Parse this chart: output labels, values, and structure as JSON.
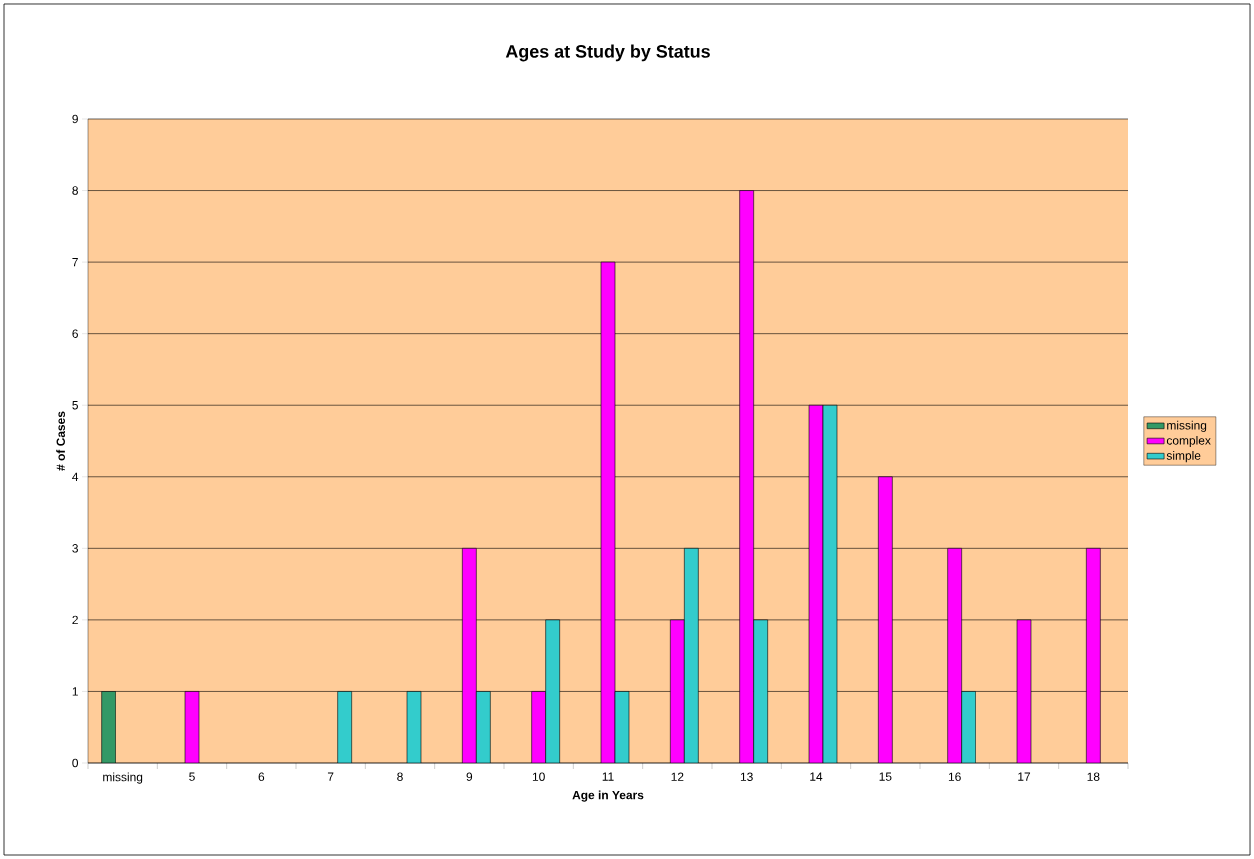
{
  "chart_data": {
    "type": "bar",
    "title": "Ages at Study by Status",
    "xlabel": "Age in Years",
    "ylabel": "# of Cases",
    "categories": [
      "missing",
      "5",
      "6",
      "7",
      "8",
      "9",
      "10",
      "11",
      "12",
      "13",
      "14",
      "15",
      "16",
      "17",
      "18"
    ],
    "series": [
      {
        "name": "missing",
        "color": "#339966",
        "values": [
          1,
          null,
          null,
          null,
          null,
          null,
          null,
          null,
          null,
          null,
          null,
          null,
          null,
          null,
          null
        ]
      },
      {
        "name": "complex",
        "color": "#ff00ff",
        "values": [
          null,
          1,
          null,
          null,
          null,
          3,
          1,
          7,
          2,
          8,
          5,
          4,
          3,
          2,
          3
        ]
      },
      {
        "name": "simple",
        "color": "#33cccc",
        "values": [
          null,
          null,
          null,
          1,
          1,
          1,
          2,
          1,
          3,
          2,
          5,
          null,
          1,
          null,
          null
        ]
      }
    ],
    "ylim": [
      0,
      9
    ],
    "yticks": [
      0,
      1,
      2,
      3,
      4,
      5,
      6,
      7,
      8,
      9
    ],
    "grid": "y",
    "legend": "right"
  }
}
